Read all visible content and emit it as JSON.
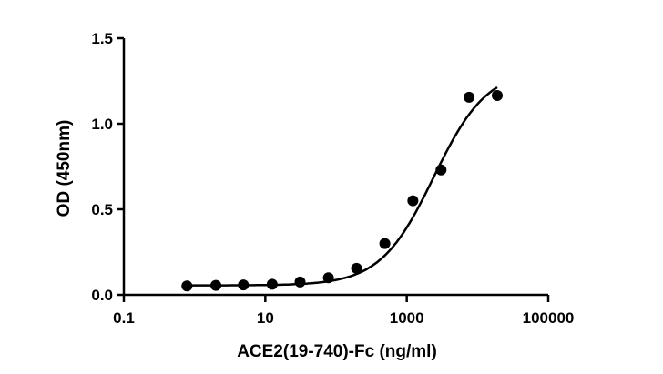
{
  "chart_data": {
    "type": "scatter",
    "xscale": "log",
    "xlim": [
      0.1,
      100000
    ],
    "ylim": [
      0,
      1.5
    ],
    "x_ticks": [
      0.1,
      10,
      1000,
      100000
    ],
    "x_tick_labels": [
      "0.1",
      "10",
      "1000",
      "100000"
    ],
    "y_ticks": [
      0,
      0.5,
      1.0,
      1.5
    ],
    "y_tick_labels": [
      "0.0",
      "0.5",
      "1.0",
      "1.5"
    ],
    "xlabel": "ACE2(19-740)-Fc (ng/ml)",
    "ylabel": "OD (450nm)",
    "grid": false,
    "points": [
      {
        "x": 0.78,
        "y": 0.052
      },
      {
        "x": 2.0,
        "y": 0.055
      },
      {
        "x": 4.9,
        "y": 0.058
      },
      {
        "x": 12.5,
        "y": 0.062
      },
      {
        "x": 31,
        "y": 0.075
      },
      {
        "x": 78,
        "y": 0.1
      },
      {
        "x": 195,
        "y": 0.155
      },
      {
        "x": 490,
        "y": 0.3
      },
      {
        "x": 1220,
        "y": 0.55
      },
      {
        "x": 3050,
        "y": 0.73
      },
      {
        "x": 7600,
        "y": 1.155
      },
      {
        "x": 19000,
        "y": 1.165
      }
    ],
    "fit_curve": {
      "model": "4PL",
      "bottom": 0.055,
      "top": 1.32,
      "ec50": 2400,
      "hill": 1.15,
      "x_range": [
        0.78,
        19000
      ]
    }
  }
}
